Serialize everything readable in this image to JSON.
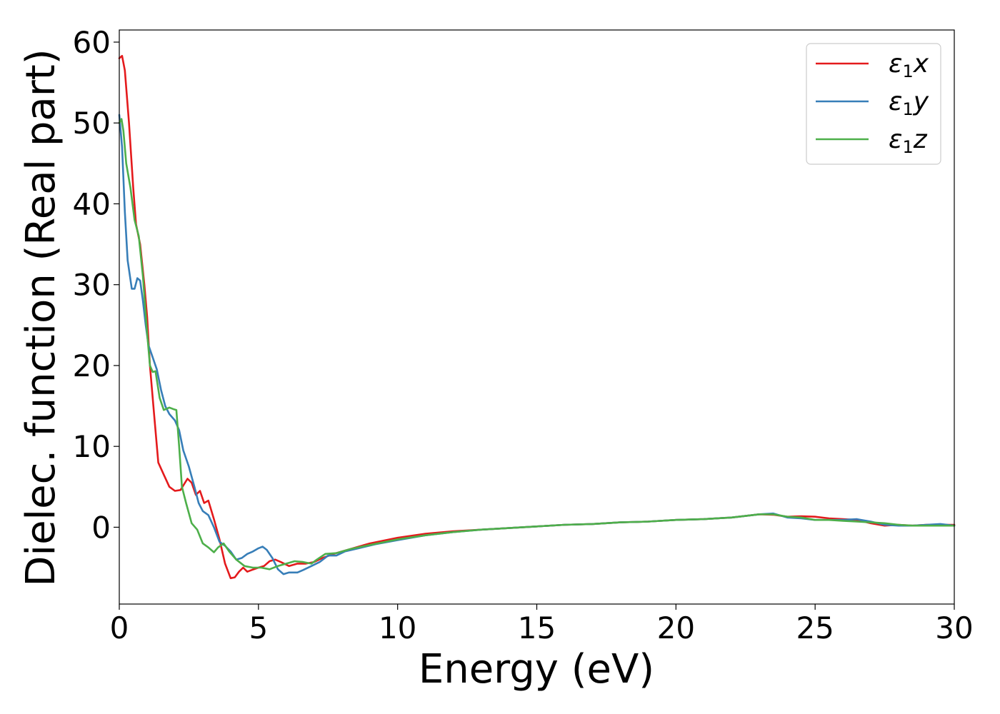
{
  "chart_data": {
    "type": "line",
    "title": "",
    "xlabel": "Energy (eV)",
    "ylabel": "Dielec. function (Real part)",
    "xlim": [
      0,
      30
    ],
    "ylim": [
      -9.5,
      61.5
    ],
    "xticks": [
      0,
      5,
      10,
      15,
      20,
      25,
      30
    ],
    "yticks": [
      0,
      10,
      20,
      30,
      40,
      50,
      60
    ],
    "grid": false,
    "legend_position": "top-right",
    "series": [
      {
        "name": "ε₁x",
        "legend_base": "ε",
        "legend_sub": "1",
        "legend_suffix": "x",
        "color": "#e41a1c",
        "points": [
          [
            0,
            58
          ],
          [
            0.1,
            58.3
          ],
          [
            0.2,
            56.5
          ],
          [
            0.35,
            50
          ],
          [
            0.5,
            42
          ],
          [
            0.6,
            37.5
          ],
          [
            0.75,
            35
          ],
          [
            0.9,
            30
          ],
          [
            1.0,
            26
          ],
          [
            1.1,
            20
          ],
          [
            1.25,
            14
          ],
          [
            1.4,
            8
          ],
          [
            1.6,
            6.5
          ],
          [
            1.8,
            5
          ],
          [
            2.0,
            4.5
          ],
          [
            2.2,
            4.6
          ],
          [
            2.45,
            6
          ],
          [
            2.6,
            5.5
          ],
          [
            2.75,
            4
          ],
          [
            2.9,
            4.5
          ],
          [
            3.05,
            3
          ],
          [
            3.2,
            3.3
          ],
          [
            3.4,
            1
          ],
          [
            3.6,
            -1.5
          ],
          [
            3.8,
            -4.5
          ],
          [
            4.0,
            -6.3
          ],
          [
            4.15,
            -6.2
          ],
          [
            4.3,
            -5.5
          ],
          [
            4.45,
            -5
          ],
          [
            4.6,
            -5.5
          ],
          [
            4.75,
            -5.3
          ],
          [
            5.0,
            -5
          ],
          [
            5.2,
            -4.8
          ],
          [
            5.4,
            -4.2
          ],
          [
            5.6,
            -4.0
          ],
          [
            5.8,
            -4.3
          ],
          [
            6.1,
            -4.8
          ],
          [
            6.4,
            -4.5
          ],
          [
            6.7,
            -4.5
          ],
          [
            7.0,
            -4.3
          ],
          [
            7.3,
            -3.8
          ],
          [
            7.7,
            -3.3
          ],
          [
            8.2,
            -2.8
          ],
          [
            9.0,
            -2.0
          ],
          [
            10,
            -1.3
          ],
          [
            11,
            -0.8
          ],
          [
            12,
            -0.5
          ],
          [
            13,
            -0.3
          ],
          [
            14,
            -0.1
          ],
          [
            15,
            0.1
          ],
          [
            16,
            0.3
          ],
          [
            17,
            0.4
          ],
          [
            18,
            0.6
          ],
          [
            19,
            0.7
          ],
          [
            20,
            0.9
          ],
          [
            21,
            1.0
          ],
          [
            22,
            1.2
          ],
          [
            22.5,
            1.4
          ],
          [
            23,
            1.6
          ],
          [
            23.5,
            1.55
          ],
          [
            24,
            1.3
          ],
          [
            24.5,
            1.35
          ],
          [
            25,
            1.3
          ],
          [
            25.5,
            1.1
          ],
          [
            26,
            1.0
          ],
          [
            26.5,
            0.9
          ],
          [
            27,
            0.5
          ],
          [
            27.5,
            0.2
          ],
          [
            28,
            0.3
          ],
          [
            28.5,
            0.2
          ],
          [
            29,
            0.3
          ],
          [
            29.5,
            0.3
          ],
          [
            30,
            0.3
          ]
        ]
      },
      {
        "name": "ε₁y",
        "legend_base": "ε",
        "legend_sub": "1",
        "legend_suffix": "y",
        "color": "#377eb8",
        "points": [
          [
            0,
            51
          ],
          [
            0.1,
            47
          ],
          [
            0.2,
            39
          ],
          [
            0.3,
            33
          ],
          [
            0.45,
            29.5
          ],
          [
            0.55,
            29.5
          ],
          [
            0.65,
            30.8
          ],
          [
            0.75,
            30.5
          ],
          [
            0.85,
            28
          ],
          [
            0.95,
            25
          ],
          [
            1.05,
            22.5
          ],
          [
            1.2,
            21
          ],
          [
            1.35,
            19.5
          ],
          [
            1.5,
            17
          ],
          [
            1.65,
            15
          ],
          [
            1.8,
            14
          ],
          [
            2.0,
            13.2
          ],
          [
            2.15,
            12
          ],
          [
            2.3,
            9.5
          ],
          [
            2.5,
            7.5
          ],
          [
            2.7,
            5
          ],
          [
            2.85,
            3
          ],
          [
            3.0,
            2
          ],
          [
            3.2,
            1.5
          ],
          [
            3.4,
            0
          ],
          [
            3.6,
            -1.8
          ],
          [
            3.8,
            -2.3
          ],
          [
            4.0,
            -3.0
          ],
          [
            4.2,
            -4.0
          ],
          [
            4.4,
            -3.8
          ],
          [
            4.6,
            -3.3
          ],
          [
            4.8,
            -3.0
          ],
          [
            5.0,
            -2.6
          ],
          [
            5.15,
            -2.4
          ],
          [
            5.3,
            -2.8
          ],
          [
            5.5,
            -3.8
          ],
          [
            5.7,
            -5.2
          ],
          [
            5.9,
            -5.8
          ],
          [
            6.1,
            -5.6
          ],
          [
            6.4,
            -5.6
          ],
          [
            6.6,
            -5.3
          ],
          [
            6.9,
            -4.8
          ],
          [
            7.2,
            -4.3
          ],
          [
            7.5,
            -3.5
          ],
          [
            7.8,
            -3.5
          ],
          [
            8.1,
            -3.0
          ],
          [
            8.6,
            -2.6
          ],
          [
            9.2,
            -2.1
          ],
          [
            10,
            -1.6
          ],
          [
            11,
            -1.0
          ],
          [
            12,
            -0.6
          ],
          [
            13,
            -0.3
          ],
          [
            14,
            -0.1
          ],
          [
            15,
            0.1
          ],
          [
            16,
            0.3
          ],
          [
            17,
            0.4
          ],
          [
            18,
            0.6
          ],
          [
            19,
            0.7
          ],
          [
            20,
            0.9
          ],
          [
            21,
            1.0
          ],
          [
            22,
            1.2
          ],
          [
            22.5,
            1.4
          ],
          [
            23,
            1.6
          ],
          [
            23.5,
            1.7
          ],
          [
            24,
            1.2
          ],
          [
            24.5,
            1.1
          ],
          [
            25,
            0.9
          ],
          [
            25.5,
            0.9
          ],
          [
            26,
            0.9
          ],
          [
            26.5,
            1.0
          ],
          [
            27,
            0.7
          ],
          [
            27.5,
            0.3
          ],
          [
            28,
            0.2
          ],
          [
            28.5,
            0.2
          ],
          [
            29,
            0.3
          ],
          [
            29.5,
            0.4
          ],
          [
            30,
            0.2
          ]
        ]
      },
      {
        "name": "ε₁z",
        "legend_base": "ε",
        "legend_sub": "1",
        "legend_suffix": "z",
        "color": "#4daf4a",
        "points": [
          [
            0,
            50
          ],
          [
            0.08,
            50.5
          ],
          [
            0.15,
            49
          ],
          [
            0.25,
            45
          ],
          [
            0.4,
            42
          ],
          [
            0.55,
            38
          ],
          [
            0.7,
            36
          ],
          [
            0.85,
            31
          ],
          [
            1.0,
            24
          ],
          [
            1.1,
            20
          ],
          [
            1.2,
            19.2
          ],
          [
            1.3,
            19.3
          ],
          [
            1.45,
            16
          ],
          [
            1.6,
            14.5
          ],
          [
            1.8,
            14.8
          ],
          [
            1.95,
            14.6
          ],
          [
            2.05,
            14.5
          ],
          [
            2.15,
            10
          ],
          [
            2.25,
            5
          ],
          [
            2.4,
            3
          ],
          [
            2.6,
            0.5
          ],
          [
            2.8,
            -0.3
          ],
          [
            3.0,
            -2.0
          ],
          [
            3.2,
            -2.5
          ],
          [
            3.4,
            -3.1
          ],
          [
            3.55,
            -2.5
          ],
          [
            3.75,
            -2.0
          ],
          [
            3.95,
            -3.0
          ],
          [
            4.2,
            -4.0
          ],
          [
            4.5,
            -4.8
          ],
          [
            4.8,
            -5.0
          ],
          [
            5.1,
            -5.0
          ],
          [
            5.4,
            -5.2
          ],
          [
            5.7,
            -4.8
          ],
          [
            6.0,
            -4.5
          ],
          [
            6.3,
            -4.2
          ],
          [
            6.6,
            -4.3
          ],
          [
            6.9,
            -4.5
          ],
          [
            7.1,
            -4.0
          ],
          [
            7.4,
            -3.3
          ],
          [
            7.8,
            -3.2
          ],
          [
            8.3,
            -2.7
          ],
          [
            9,
            -2.2
          ],
          [
            10,
            -1.5
          ],
          [
            11,
            -1.0
          ],
          [
            12,
            -0.6
          ],
          [
            13,
            -0.3
          ],
          [
            14,
            -0.1
          ],
          [
            15,
            0.1
          ],
          [
            16,
            0.3
          ],
          [
            17,
            0.4
          ],
          [
            18,
            0.6
          ],
          [
            19,
            0.7
          ],
          [
            20,
            0.9
          ],
          [
            21,
            1.0
          ],
          [
            22,
            1.2
          ],
          [
            22.5,
            1.4
          ],
          [
            23,
            1.6
          ],
          [
            23.5,
            1.6
          ],
          [
            24,
            1.3
          ],
          [
            24.5,
            1.2
          ],
          [
            25,
            0.9
          ],
          [
            25.5,
            0.9
          ],
          [
            26,
            0.8
          ],
          [
            26.5,
            0.7
          ],
          [
            27,
            0.6
          ],
          [
            27.5,
            0.5
          ],
          [
            28,
            0.3
          ],
          [
            28.5,
            0.2
          ],
          [
            29,
            0.2
          ],
          [
            29.5,
            0.2
          ],
          [
            30,
            0.2
          ]
        ]
      }
    ]
  }
}
